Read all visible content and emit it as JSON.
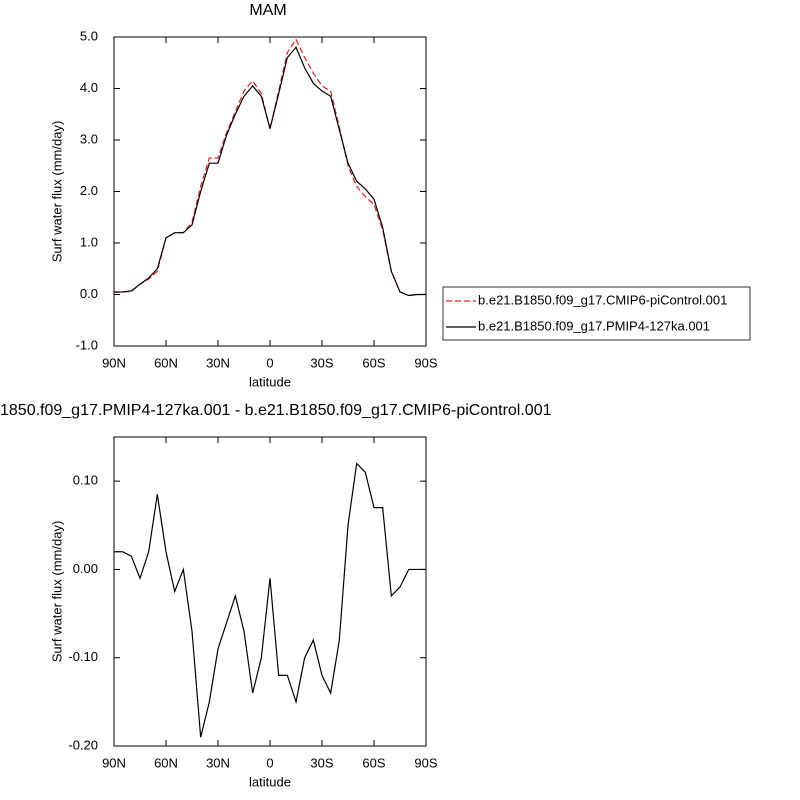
{
  "chart_data": [
    {
      "type": "line",
      "title": "MAM",
      "xlabel": "latitude",
      "ylabel": "Surf water flux (mm/day)",
      "x": [
        90,
        85,
        80,
        75,
        70,
        65,
        60,
        55,
        50,
        45,
        40,
        35,
        30,
        25,
        20,
        15,
        10,
        5,
        0,
        -5,
        -10,
        -15,
        -20,
        -25,
        -30,
        -35,
        -40,
        -45,
        -50,
        -55,
        -60,
        -65,
        -70,
        -75,
        -80,
        -85,
        -90
      ],
      "series": [
        {
          "name": "b.e21.B1850.f09_g17.CMIP6-piControl.001",
          "color": "#e02020",
          "dash": true,
          "values": [
            0.04,
            0.05,
            0.06,
            0.2,
            0.3,
            0.45,
            1.1,
            1.2,
            1.2,
            1.4,
            2.1,
            2.65,
            2.65,
            3.15,
            3.55,
            3.95,
            4.15,
            3.9,
            3.22,
            3.95,
            4.7,
            4.95,
            4.6,
            4.3,
            4.05,
            3.95,
            3.25,
            2.5,
            2.1,
            1.9,
            1.75,
            1.25,
            0.45,
            0.05,
            -0.02,
            0.0,
            0.0
          ]
        },
        {
          "name": "b.e21.B1850.f09_g17.PMIP4-127ka.001",
          "color": "#000000",
          "dash": false,
          "values": [
            0.05,
            0.05,
            0.07,
            0.2,
            0.32,
            0.5,
            1.1,
            1.2,
            1.2,
            1.35,
            2.0,
            2.55,
            2.55,
            3.1,
            3.5,
            3.85,
            4.05,
            3.85,
            3.22,
            3.9,
            4.6,
            4.8,
            4.4,
            4.1,
            3.95,
            3.85,
            3.2,
            2.55,
            2.2,
            2.05,
            1.85,
            1.3,
            0.45,
            0.05,
            -0.02,
            0.0,
            0.0
          ]
        }
      ],
      "xlim": [
        90,
        -90
      ],
      "xticks": [
        {
          "value": 90,
          "label": "90N"
        },
        {
          "value": 60,
          "label": "60N"
        },
        {
          "value": 30,
          "label": "30N"
        },
        0,
        {
          "value": -30,
          "label": "30S"
        },
        {
          "value": -60,
          "label": "60S"
        },
        {
          "value": -90,
          "label": "90S"
        }
      ],
      "ylim": [
        -1,
        5
      ],
      "yticks": [
        {
          "value": -1,
          "label": "-1.0"
        },
        {
          "value": 0,
          "label": "0.0"
        },
        {
          "value": 1,
          "label": "1.0"
        },
        {
          "value": 2,
          "label": "2.0"
        },
        {
          "value": 3,
          "label": "3.0"
        },
        {
          "value": 4,
          "label": "4.0"
        },
        {
          "value": 5,
          "label": "5.0"
        }
      ],
      "legend": "right"
    },
    {
      "type": "line",
      "title": "1850.f09_g17.PMIP4-127ka.001 - b.e21.B1850.f09_g17.CMIP6-piControl.001",
      "xlabel": "latitude",
      "ylabel": "Surf water flux (mm/day)",
      "x": [
        90,
        85,
        80,
        75,
        70,
        65,
        60,
        55,
        50,
        45,
        40,
        35,
        30,
        25,
        20,
        15,
        10,
        5,
        0,
        -5,
        -10,
        -15,
        -20,
        -25,
        -30,
        -35,
        -40,
        -45,
        -50,
        -55,
        -60,
        -65,
        -70,
        -75,
        -80,
        -85,
        -90
      ],
      "series": [
        {
          "color": "#000000",
          "dash": false,
          "values": [
            0.02,
            0.02,
            0.015,
            -0.01,
            0.02,
            0.085,
            0.02,
            -0.025,
            0.0,
            -0.07,
            -0.19,
            -0.15,
            -0.09,
            -0.06,
            -0.03,
            -0.07,
            -0.14,
            -0.1,
            -0.01,
            -0.12,
            -0.12,
            -0.15,
            -0.1,
            -0.08,
            -0.12,
            -0.14,
            -0.08,
            0.05,
            0.12,
            0.11,
            0.07,
            0.07,
            -0.03,
            -0.02,
            0.0,
            0.0,
            0.0
          ]
        }
      ],
      "xlim": [
        90,
        -90
      ],
      "xticks": [
        {
          "value": 90,
          "label": "90N"
        },
        {
          "value": 60,
          "label": "60N"
        },
        {
          "value": 30,
          "label": "30N"
        },
        0,
        {
          "value": -30,
          "label": "30S"
        },
        {
          "value": -60,
          "label": "60S"
        },
        {
          "value": -90,
          "label": "90S"
        }
      ],
      "ylim": [
        -0.2,
        0.15
      ],
      "yticks": [
        {
          "value": -0.2,
          "label": "-0.20"
        },
        {
          "value": -0.1,
          "label": "-0.10"
        },
        {
          "value": 0,
          "label": "0.00"
        },
        {
          "value": 0.1,
          "label": "0.10"
        }
      ]
    }
  ]
}
